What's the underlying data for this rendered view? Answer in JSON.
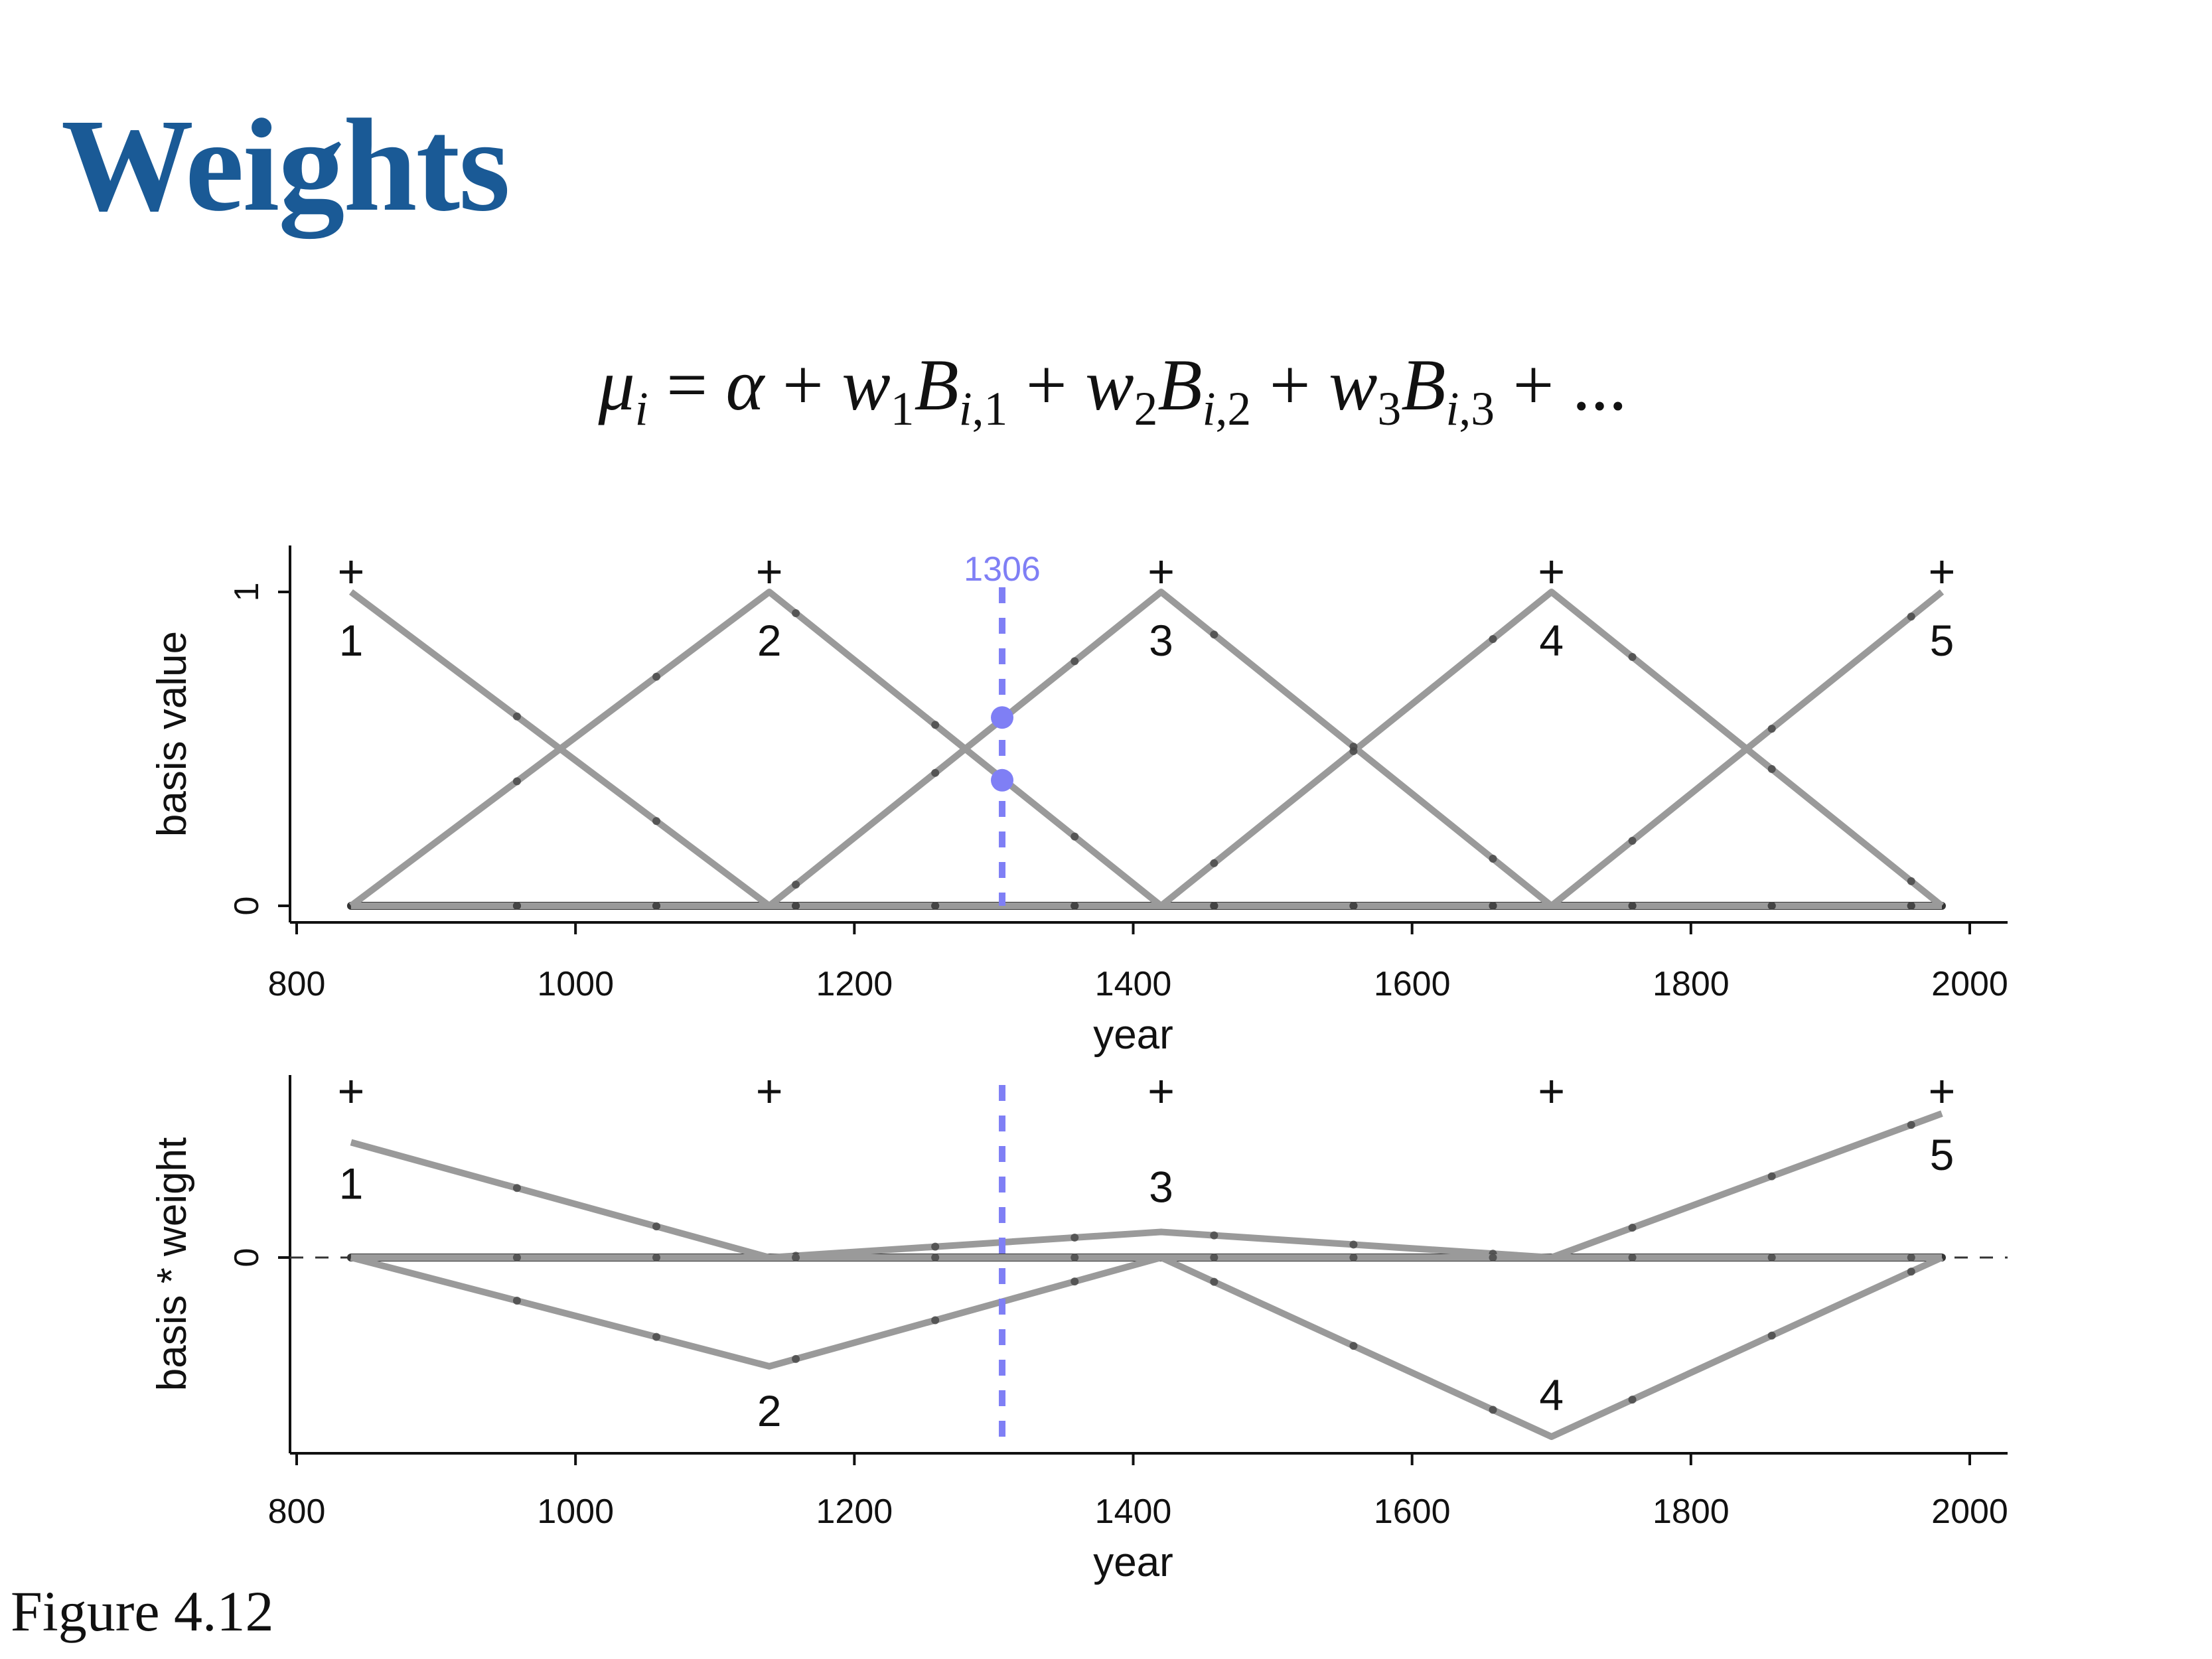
{
  "slide": {
    "title": "Weights",
    "equation": "μ_i = α + w_1B_{i,1} + w_2B_{i,2} + w_3B_{i,3} + ...",
    "caption": "Figure 4.12"
  },
  "colors": {
    "title": "#1a5a96",
    "basis_line": "#9a9a9a",
    "baseline": "#333333",
    "highlight": "#7f7ff5",
    "knot_dot": "#444444"
  },
  "chart_data": [
    {
      "type": "line",
      "xlabel": "year",
      "ylabel": "basis value",
      "xlim": [
        800,
        2000
      ],
      "ylim": [
        0,
        1
      ],
      "xticks": [
        800,
        1000,
        1200,
        1400,
        1600,
        1800,
        2000
      ],
      "yticks": [
        0,
        1
      ],
      "knots": [
        839,
        1139,
        1420,
        1700,
        1980
      ],
      "knot_markers": [
        "+",
        "+",
        "+",
        "+",
        "+"
      ],
      "basis_labels": [
        "1",
        "2",
        "3",
        "4",
        "5"
      ],
      "series": [
        {
          "x": [
            839,
            1139,
            1420,
            1700,
            1980
          ],
          "y": [
            1,
            0,
            0,
            0,
            0
          ]
        },
        {
          "x": [
            839,
            1139,
            1420,
            1700,
            1980
          ],
          "y": [
            0,
            1,
            0,
            0,
            0
          ]
        },
        {
          "x": [
            839,
            1139,
            1420,
            1700,
            1980
          ],
          "y": [
            0,
            0,
            1,
            0,
            0
          ]
        },
        {
          "x": [
            839,
            1139,
            1420,
            1700,
            1980
          ],
          "y": [
            0,
            0,
            0,
            1,
            0
          ]
        },
        {
          "x": [
            839,
            1139,
            1420,
            1700,
            1980
          ],
          "y": [
            0,
            0,
            0,
            0,
            1
          ]
        }
      ],
      "highlight": {
        "x": 1306,
        "label": "1306",
        "points": [
          0.6,
          0.4
        ]
      },
      "grid": false
    },
    {
      "type": "line",
      "xlabel": "year",
      "ylabel": "basis * weight",
      "xlim": [
        800,
        2000
      ],
      "ylim": [
        -0.55,
        0.55
      ],
      "xticks": [
        800,
        1000,
        1200,
        1400,
        1600,
        1800,
        2000
      ],
      "yticks": [
        0
      ],
      "knots": [
        839,
        1139,
        1420,
        1700,
        1980
      ],
      "knot_markers": [
        "+",
        "+",
        "+",
        "+",
        "+"
      ],
      "basis_labels": [
        "1",
        "2",
        "3",
        "4",
        "5"
      ],
      "weights": [
        0.36,
        -0.34,
        0.08,
        -0.56,
        0.45
      ],
      "zero_line": "dashed",
      "highlight": {
        "x": 1306
      },
      "grid": false
    }
  ]
}
